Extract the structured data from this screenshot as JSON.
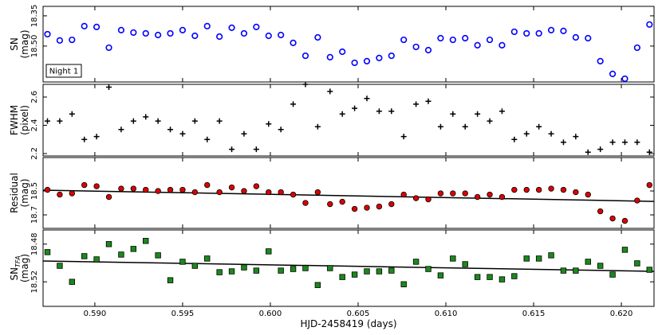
{
  "chart_data": [
    {
      "type": "scatter",
      "ylabel": [
        "SN",
        "(mag)"
      ],
      "annotation": "Night 1",
      "marker": "circle-open",
      "color": "#0000ff",
      "y_inverted": true,
      "xlim": [
        0.58705,
        0.62186
      ],
      "ylim": [
        18.303,
        18.678
      ],
      "yticks": [
        18.35,
        {
          "value": 18.5,
          "label": "18.50"
        }
      ],
      "x": [
        0.5873,
        0.588,
        0.5887,
        0.5894,
        0.5901,
        0.5908,
        0.5915,
        0.5922,
        0.5929,
        0.5936,
        0.5943,
        0.595,
        0.5957,
        0.5964,
        0.5971,
        0.5978,
        0.5985,
        0.5992,
        0.5999,
        0.6006,
        0.6013,
        0.602,
        0.6027,
        0.6034,
        0.6041,
        0.6048,
        0.6055,
        0.6062,
        0.6069,
        0.6076,
        0.6083,
        0.609,
        0.6097,
        0.6104,
        0.6111,
        0.6118,
        0.6125,
        0.6132,
        0.6139,
        0.6146,
        0.6153,
        0.616,
        0.6167,
        0.6174,
        0.6181,
        0.6188,
        0.6195,
        0.6202,
        0.6209,
        0.6216
      ],
      "values": [
        18.441,
        18.472,
        18.469,
        18.401,
        18.405,
        18.508,
        18.421,
        18.433,
        18.437,
        18.445,
        18.437,
        18.421,
        18.449,
        18.401,
        18.453,
        18.409,
        18.437,
        18.405,
        18.449,
        18.445,
        18.484,
        18.548,
        18.457,
        18.555,
        18.528,
        18.583,
        18.575,
        18.559,
        18.548,
        18.469,
        18.504,
        18.52,
        18.461,
        18.469,
        18.461,
        18.496,
        18.469,
        18.496,
        18.429,
        18.437,
        18.437,
        18.421,
        18.425,
        18.457,
        18.461,
        18.575,
        18.638,
        18.662,
        18.508,
        18.393
      ]
    },
    {
      "type": "scatter",
      "ylabel": [
        "FWHM",
        "(pixel)"
      ],
      "marker": "plus",
      "color": "#000000",
      "xlim": [
        0.58705,
        0.62186
      ],
      "ylim": [
        2.183,
        2.69
      ],
      "yticks": [
        2.2,
        2.4,
        2.6
      ],
      "x": [
        0.5873,
        0.588,
        0.5887,
        0.5894,
        0.5901,
        0.5908,
        0.5915,
        0.5922,
        0.5929,
        0.5936,
        0.5943,
        0.595,
        0.5957,
        0.5964,
        0.5971,
        0.5978,
        0.5985,
        0.5992,
        0.5999,
        0.6006,
        0.6013,
        0.602,
        0.6027,
        0.6034,
        0.6041,
        0.6048,
        0.6055,
        0.6062,
        0.6069,
        0.6076,
        0.6083,
        0.609,
        0.6097,
        0.6104,
        0.6111,
        0.6118,
        0.6125,
        0.6132,
        0.6139,
        0.6146,
        0.6153,
        0.616,
        0.6167,
        0.6174,
        0.6181,
        0.6188,
        0.6195,
        0.6202,
        0.6209,
        0.6216
      ],
      "values": [
        2.43,
        2.43,
        2.48,
        2.3,
        2.32,
        2.67,
        2.37,
        2.43,
        2.46,
        2.43,
        2.37,
        2.34,
        2.43,
        2.3,
        2.43,
        2.23,
        2.34,
        2.23,
        2.41,
        2.37,
        2.55,
        2.69,
        2.39,
        2.64,
        2.48,
        2.52,
        2.59,
        2.5,
        2.5,
        2.32,
        2.55,
        2.57,
        2.39,
        2.48,
        2.39,
        2.48,
        2.43,
        2.5,
        2.3,
        2.34,
        2.39,
        2.34,
        2.28,
        2.32,
        2.21,
        2.23,
        2.28,
        2.28,
        2.28,
        2.21
      ]
    },
    {
      "type": "scatter",
      "ylabel": [
        "Residual",
        "(mag)"
      ],
      "marker": "circle",
      "color": "#dd0000",
      "y_inverted": true,
      "xlim": [
        0.58705,
        0.62186
      ],
      "ylim": [
        18.22,
        18.813
      ],
      "yticks": [
        18.5,
        18.7
      ],
      "fit_line": {
        "x": [
          0.58705,
          0.62186
        ],
        "y": [
          18.493,
          18.587
        ]
      },
      "x": [
        0.5873,
        0.588,
        0.5887,
        0.5894,
        0.5901,
        0.5908,
        0.5915,
        0.5922,
        0.5929,
        0.5936,
        0.5943,
        0.595,
        0.5957,
        0.5964,
        0.5971,
        0.5978,
        0.5985,
        0.5992,
        0.5999,
        0.6006,
        0.6013,
        0.602,
        0.6027,
        0.6034,
        0.6041,
        0.6048,
        0.6055,
        0.6062,
        0.6069,
        0.6076,
        0.6083,
        0.609,
        0.6097,
        0.6104,
        0.6111,
        0.6118,
        0.6125,
        0.6132,
        0.6139,
        0.6146,
        0.6153,
        0.616,
        0.6167,
        0.6174,
        0.6181,
        0.6188,
        0.6195,
        0.6202,
        0.6209,
        0.6216
      ],
      "values": [
        18.49,
        18.53,
        18.52,
        18.45,
        18.46,
        18.55,
        18.48,
        18.48,
        18.49,
        18.5,
        18.49,
        18.49,
        18.51,
        18.45,
        18.51,
        18.47,
        18.5,
        18.46,
        18.51,
        18.51,
        18.53,
        18.6,
        18.51,
        18.61,
        18.59,
        18.65,
        18.64,
        18.63,
        18.61,
        18.53,
        18.56,
        18.57,
        18.52,
        18.52,
        18.52,
        18.55,
        18.53,
        18.55,
        18.49,
        18.49,
        18.49,
        18.48,
        18.49,
        18.51,
        18.53,
        18.67,
        18.73,
        18.75,
        18.58,
        18.45
      ]
    },
    {
      "type": "scatter",
      "ylabel": [
        "SN",
        "(mag)"
      ],
      "ylabel_sub": "TFA",
      "marker": "square",
      "color": "#1a8a1a",
      "y_inverted": true,
      "xlabel": "HJD-2458419 (days)",
      "xlim": [
        0.58705,
        0.62186
      ],
      "ylim": [
        18.465,
        18.546
      ],
      "yticks": [
        18.48,
        18.52
      ],
      "xticks": [
        {
          "value": 0.59,
          "label": "0.590"
        },
        0.595,
        {
          "value": 0.6,
          "label": "0.600"
        },
        0.605,
        {
          "value": 0.61,
          "label": "0.610"
        },
        0.615,
        {
          "value": 0.62,
          "label": "0.620"
        }
      ],
      "fit_line": {
        "x": [
          0.58705,
          0.62186
        ],
        "y": [
          18.4979,
          18.5089
        ]
      },
      "x": [
        0.5873,
        0.588,
        0.5887,
        0.5894,
        0.5901,
        0.5908,
        0.5915,
        0.5922,
        0.5929,
        0.5936,
        0.5943,
        0.595,
        0.5957,
        0.5964,
        0.5971,
        0.5978,
        0.5985,
        0.5992,
        0.5999,
        0.6006,
        0.6013,
        0.602,
        0.6027,
        0.6034,
        0.6041,
        0.6048,
        0.6055,
        0.6062,
        0.6069,
        0.6076,
        0.6083,
        0.609,
        0.6097,
        0.6104,
        0.6111,
        0.6118,
        0.6125,
        0.6132,
        0.6139,
        0.6146,
        0.6153,
        0.616,
        0.6167,
        0.6174,
        0.6181,
        0.6188,
        0.6195,
        0.6202,
        0.6209,
        0.6216
      ],
      "values": [
        18.4885,
        18.503,
        18.52,
        18.4928,
        18.4962,
        18.48,
        18.4911,
        18.4851,
        18.4766,
        18.4919,
        18.5183,
        18.4987,
        18.503,
        18.4953,
        18.5098,
        18.5089,
        18.5047,
        18.5081,
        18.4877,
        18.5081,
        18.5064,
        18.5055,
        18.5234,
        18.5055,
        18.5149,
        18.5123,
        18.5089,
        18.5089,
        18.5081,
        18.5226,
        18.4987,
        18.5064,
        18.5132,
        18.4953,
        18.5013,
        18.5149,
        18.5149,
        18.5174,
        18.514,
        18.4953,
        18.4953,
        18.4919,
        18.5081,
        18.5081,
        18.4987,
        18.503,
        18.5123,
        18.486,
        18.5004,
        18.5072
      ]
    }
  ]
}
